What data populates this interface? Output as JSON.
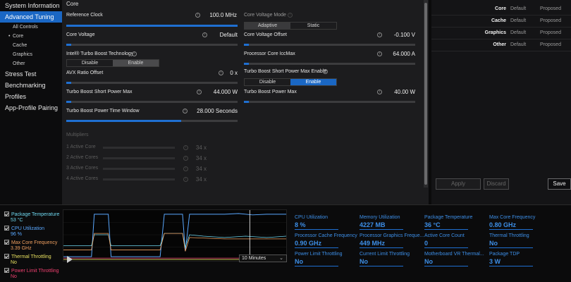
{
  "sidebar": {
    "items": [
      {
        "label": "System Information",
        "kind": "top",
        "active": false
      },
      {
        "label": "Advanced Tuning",
        "kind": "top",
        "active": true
      },
      {
        "label": "All Controls",
        "kind": "sub"
      },
      {
        "label": "Core",
        "kind": "sub",
        "current": true
      },
      {
        "label": "Cache",
        "kind": "sub"
      },
      {
        "label": "Graphics",
        "kind": "sub"
      },
      {
        "label": "Other",
        "kind": "sub"
      },
      {
        "label": "Stress Test",
        "kind": "top"
      },
      {
        "label": "Benchmarking",
        "kind": "top"
      },
      {
        "label": "Profiles",
        "kind": "top"
      },
      {
        "label": "App-Profile Pairing",
        "kind": "top"
      }
    ]
  },
  "main": {
    "section_title": "Core",
    "reference_clock": {
      "label": "Reference Clock",
      "value": "100.0 MHz",
      "level": 1.0
    },
    "core_voltage_mode": {
      "label": "Core Voltage Mode",
      "options": [
        "Adaptive",
        "Static"
      ],
      "selected": "Adaptive"
    },
    "core_voltage": {
      "label": "Core Voltage",
      "value": "Default",
      "level": 0.0
    },
    "core_voltage_offset": {
      "label": "Core Voltage Offset",
      "value": "-0.100 V",
      "level": 0.0
    },
    "turbo_boost_tech": {
      "label": "Intel® Turbo Boost Technology",
      "options": [
        "Disable",
        "Enable"
      ],
      "selected": "Enable"
    },
    "processor_core_iccmax": {
      "label": "Processor Core IccMax",
      "value": "64.000 A",
      "level": 0.0
    },
    "avx_ratio_offset": {
      "label": "AVX Ratio Offset",
      "value": "0 x",
      "level": 0.0
    },
    "tb_short_power_max_enable": {
      "label": "Turbo Boost Short Power Max Enable",
      "options": [
        "Disable",
        "Enable"
      ],
      "selected": "Enable"
    },
    "tb_short_power_max": {
      "label": "Turbo Boost Short Power Max",
      "value": "44.000 W",
      "level": 0.0
    },
    "tb_power_max": {
      "label": "Turbo Boost Power Max",
      "value": "40.00 W",
      "level": 0.0
    },
    "tb_power_time_window": {
      "label": "Turbo Boost Power Time Window",
      "value": "28.000 Seconds",
      "level": 0.67
    },
    "multipliers": {
      "label": "Multipliers",
      "rows": [
        {
          "label": "1 Active Core",
          "value": "34 x"
        },
        {
          "label": "2 Active Cores",
          "value": "34 x"
        },
        {
          "label": "3 Active Cores",
          "value": "34 x"
        },
        {
          "label": "4 Active Cores",
          "value": "34 x"
        }
      ]
    }
  },
  "right_panel": {
    "rows": [
      {
        "category": "Core",
        "default": "Default",
        "proposed": "Proposed"
      },
      {
        "category": "Cache",
        "default": "Default",
        "proposed": "Proposed"
      },
      {
        "category": "Graphics",
        "default": "Default",
        "proposed": "Proposed"
      },
      {
        "category": "Other",
        "default": "Default",
        "proposed": "Proposed"
      }
    ],
    "apply_label": "Apply",
    "discard_label": "Discard",
    "save_label": "Save"
  },
  "monitor": {
    "items": [
      {
        "label": "Package Temperature",
        "value": "53 °C",
        "color": "#6fd8f0"
      },
      {
        "label": "CPU Utilization",
        "value": "96 %",
        "color": "#5aa8ff"
      },
      {
        "label": "Max Core Frequency",
        "value": "3.39 GHz",
        "color": "#f0a060"
      },
      {
        "label": "Thermal Throttling",
        "value": "No",
        "color": "#e8e060"
      },
      {
        "label": "Power Limit Throttling",
        "value": "No",
        "color": "#f04070"
      }
    ],
    "time_window": "10 Minutes"
  },
  "stats": [
    {
      "label": "CPU Utilization",
      "value": "8 %"
    },
    {
      "label": "Memory Utilization",
      "value": "4227  MB"
    },
    {
      "label": "Package Temperature",
      "value": "36 °C"
    },
    {
      "label": "Max Core Frequency",
      "value": "0.80 GHz"
    },
    {
      "label": "Processor Cache Frequency",
      "value": "0.90 GHz"
    },
    {
      "label": "Processor Graphics Freque...",
      "value": "449 MHz"
    },
    {
      "label": "Active Core Count",
      "value": "0"
    },
    {
      "label": "Thermal Throttling",
      "value": "No"
    },
    {
      "label": "Power Limit Throttling",
      "value": "No"
    },
    {
      "label": "Current Limit Throttling",
      "value": "No"
    },
    {
      "label": "Motherboard VR Thermal...",
      "value": "No"
    },
    {
      "label": "Package TDP",
      "value": "3 W"
    }
  ],
  "colors": {
    "accent": "#1a67c4",
    "stat": "#3d8fe8"
  }
}
